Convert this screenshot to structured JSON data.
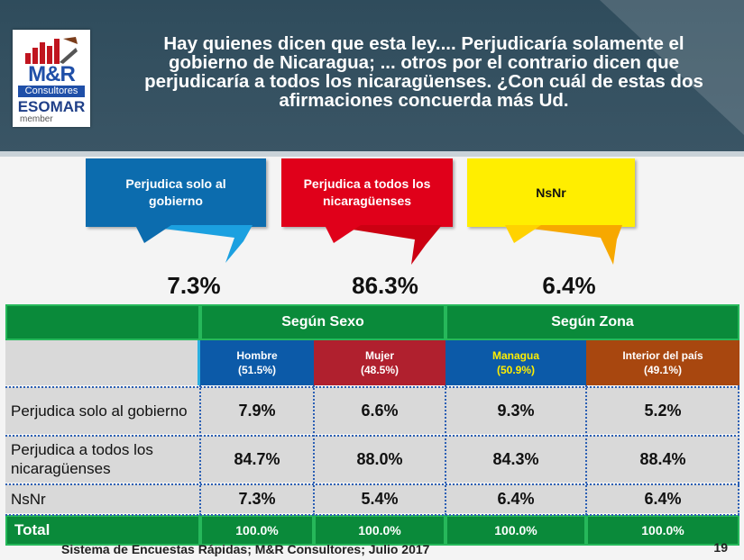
{
  "header": {
    "title": "Hay quienes dicen que esta ley.... Perjudicaría solamente el gobierno de Nicaragua; ... otros por el contrario dicen que perjudicaría a todos los nicaragüenses. ¿Con cuál de estas dos afirmaciones concuerda más Ud."
  },
  "logo": {
    "brand": "M&R",
    "subtitle": "Consultores",
    "org": "ESOMAR",
    "member": "member"
  },
  "colors": {
    "blue": "#0c6cae",
    "red": "#e0001a",
    "yellow": "#ffee00",
    "green": "#0a8a3a"
  },
  "chart_data": {
    "type": "table",
    "summary": [
      {
        "label": "Perjudica solo al gobierno",
        "value": "7.3%"
      },
      {
        "label": "Perjudica a todos los nicaragüenses",
        "value": "86.3%"
      },
      {
        "label": "NsNr",
        "value": "6.4%"
      }
    ],
    "groups": [
      "Según Sexo",
      "Según Zona"
    ],
    "columns": [
      {
        "name": "Hombre",
        "share": "(51.5%)"
      },
      {
        "name": "Mujer",
        "share": "(48.5%)"
      },
      {
        "name": "Managua",
        "share": "(50.9%)"
      },
      {
        "name": "Interior del país",
        "share": "(49.1%)"
      }
    ],
    "rows": [
      {
        "label": "Perjudica solo al gobierno",
        "values": [
          "7.9%",
          "6.6%",
          "9.3%",
          "5.2%"
        ]
      },
      {
        "label": "Perjudica a todos los nicaragüenses",
        "values": [
          "84.7%",
          "88.0%",
          "84.3%",
          "88.4%"
        ]
      },
      {
        "label": "NsNr",
        "values": [
          "7.3%",
          "5.4%",
          "6.4%",
          "6.4%"
        ]
      }
    ],
    "total": {
      "label": "Total",
      "values": [
        "100.0%",
        "100.0%",
        "100.0%",
        "100.0%"
      ]
    }
  },
  "footer": {
    "source": "Sistema de Encuestas Rápidas; M&R Consultores; Julio 2017",
    "page": "19"
  }
}
